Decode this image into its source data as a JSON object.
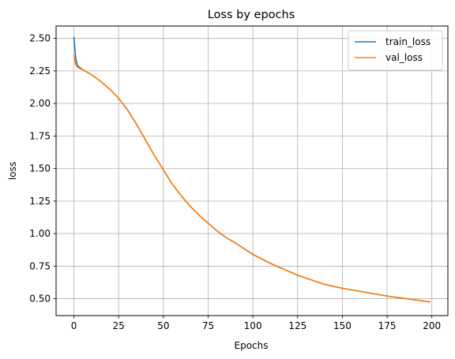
{
  "chart_data": {
    "type": "line",
    "title": "Loss by epochs",
    "xlabel": "Epochs",
    "ylabel": "loss",
    "xlim": [
      -9.95,
      208.95
    ],
    "ylim": [
      0.37,
      2.595
    ],
    "xticks": [
      0,
      25,
      50,
      75,
      100,
      125,
      150,
      175,
      200
    ],
    "yticks": [
      0.5,
      0.75,
      1.0,
      1.25,
      1.5,
      1.75,
      2.0,
      2.25,
      2.5
    ],
    "ytick_labels": [
      "0.50",
      "0.75",
      "1.00",
      "1.25",
      "1.50",
      "1.75",
      "2.00",
      "2.25",
      "2.50"
    ],
    "grid": true,
    "legend_position": "top-right",
    "colors": {
      "train_loss": "#1f77b4",
      "val_loss": "#ff7f0e"
    },
    "series": [
      {
        "name": "train_loss",
        "x": [
          0,
          1,
          2,
          3,
          5,
          10,
          15,
          20,
          25,
          30,
          35,
          40,
          45,
          50,
          55,
          60,
          65,
          70,
          75,
          80,
          85,
          90,
          100,
          110,
          125,
          140,
          150,
          175,
          199
        ],
        "values": [
          2.51,
          2.35,
          2.29,
          2.28,
          2.26,
          2.22,
          2.17,
          2.11,
          2.04,
          1.95,
          1.84,
          1.72,
          1.6,
          1.49,
          1.38,
          1.29,
          1.21,
          1.14,
          1.08,
          1.02,
          0.97,
          0.93,
          0.84,
          0.77,
          0.68,
          0.61,
          0.58,
          0.52,
          0.475
        ]
      },
      {
        "name": "val_loss",
        "x": [
          0,
          1,
          2,
          3,
          5,
          10,
          15,
          20,
          25,
          30,
          35,
          40,
          45,
          50,
          55,
          60,
          65,
          70,
          75,
          80,
          85,
          90,
          100,
          110,
          125,
          140,
          150,
          175,
          199
        ],
        "values": [
          2.37,
          2.3,
          2.28,
          2.27,
          2.26,
          2.22,
          2.17,
          2.11,
          2.04,
          1.95,
          1.84,
          1.72,
          1.6,
          1.49,
          1.38,
          1.29,
          1.21,
          1.14,
          1.08,
          1.02,
          0.97,
          0.93,
          0.84,
          0.77,
          0.68,
          0.61,
          0.58,
          0.52,
          0.475
        ]
      }
    ]
  }
}
